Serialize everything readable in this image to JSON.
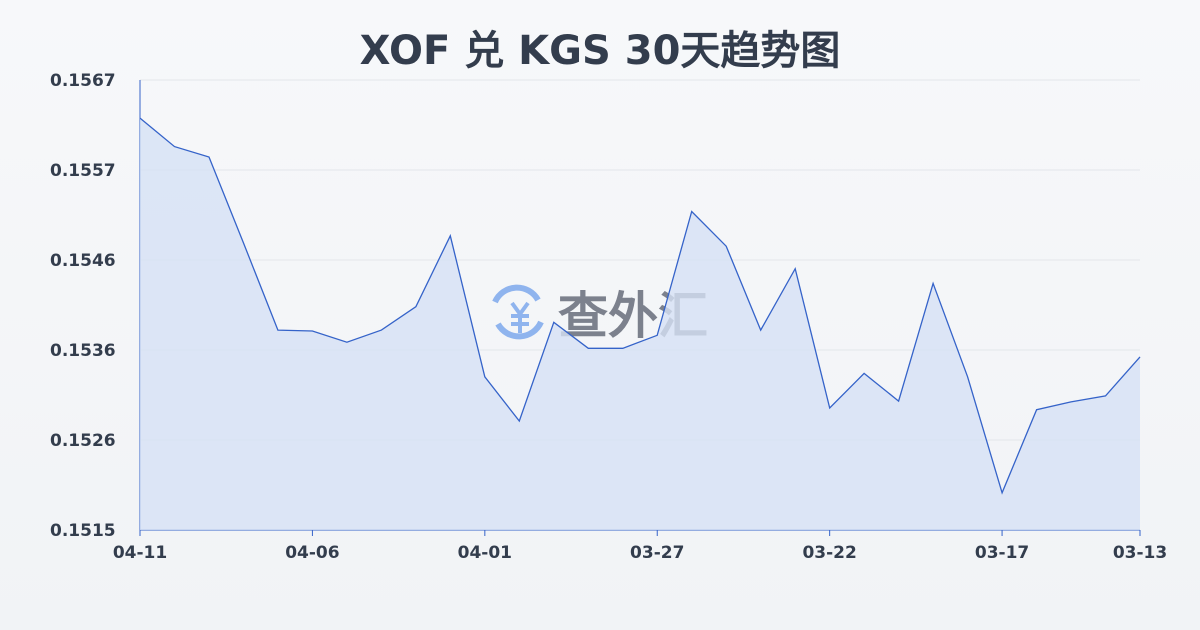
{
  "chart_data": {
    "type": "area",
    "title": "XOF 兑 KGS 30天趋势图",
    "xlabel": "",
    "ylabel": "",
    "x": [
      "04-11",
      "04-10",
      "04-09",
      "04-08",
      "04-07",
      "04-06",
      "04-05",
      "04-04",
      "04-03",
      "04-02",
      "04-01",
      "03-31",
      "03-30",
      "03-29",
      "03-28",
      "03-27",
      "03-26",
      "03-25",
      "03-24",
      "03-23",
      "03-22",
      "03-21",
      "03-20",
      "03-19",
      "03-18",
      "03-17",
      "03-16",
      "03-15",
      "03-14",
      "03-13"
    ],
    "values": [
      0.15626,
      0.15593,
      0.15581,
      0.15482,
      0.15381,
      0.1538,
      0.15367,
      0.15381,
      0.15408,
      0.1549,
      0.15327,
      0.15276,
      0.1539,
      0.1536,
      0.1536,
      0.15375,
      0.15518,
      0.15478,
      0.15381,
      0.15452,
      0.15291,
      0.15331,
      0.15299,
      0.15435,
      0.15327,
      0.15193,
      0.15289,
      0.15298,
      0.15305,
      0.1535
    ],
    "x_tick_labels": [
      "04-11",
      "04-06",
      "04-01",
      "03-27",
      "03-22",
      "03-17",
      "03-13"
    ],
    "y_tick_labels": [
      "0.1567",
      "0.1557",
      "0.1546",
      "0.1536",
      "0.1526",
      "0.1515"
    ],
    "ylim": [
      0.1515,
      0.1567
    ],
    "grid": true,
    "legend": "none",
    "colors": {
      "line": "#3563c9",
      "fill": "#d6e1f5",
      "grid": "#e3e6ea",
      "text": "#333d4d"
    }
  },
  "watermark": {
    "text": "查外汇",
    "icon": "yen-exchange-icon",
    "icon_color": "#8fb4ee"
  }
}
